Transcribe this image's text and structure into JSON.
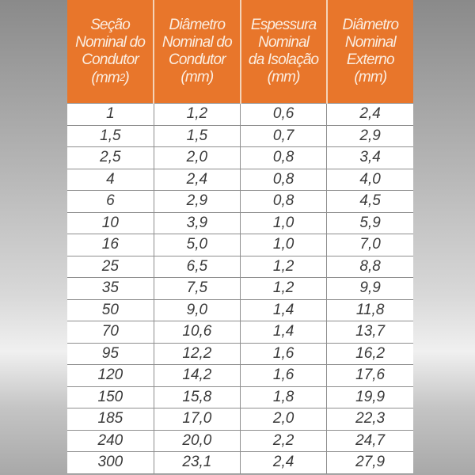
{
  "colors": {
    "header_bg": "#e8762b",
    "header_text": "#fbeee2",
    "cell_text": "#3a3a3a"
  },
  "headers": [
    {
      "lines": [
        "Seção",
        "Nominal do",
        "Condutor",
        "(mm2)"
      ]
    },
    {
      "lines": [
        "Diâmetro",
        "Nominal do",
        "Condutor",
        "(mm)"
      ]
    },
    {
      "lines": [
        "Espessura",
        "Nominal",
        "da Isolação",
        "(mm)"
      ]
    },
    {
      "lines": [
        "Diâmetro",
        "Nominal",
        "Externo",
        "(mm)"
      ]
    }
  ],
  "rows": [
    [
      "1",
      "1,2",
      "0,6",
      "2,4"
    ],
    [
      "1,5",
      "1,5",
      "0,7",
      "2,9"
    ],
    [
      "2,5",
      "2,0",
      "0,8",
      "3,4"
    ],
    [
      "4",
      "2,4",
      "0,8",
      "4,0"
    ],
    [
      "6",
      "2,9",
      "0,8",
      "4,5"
    ],
    [
      "10",
      "3,9",
      "1,0",
      "5,9"
    ],
    [
      "16",
      "5,0",
      "1,0",
      "7,0"
    ],
    [
      "25",
      "6,5",
      "1,2",
      "8,8"
    ],
    [
      "35",
      "7,5",
      "1,2",
      "9,9"
    ],
    [
      "50",
      "9,0",
      "1,4",
      "11,8"
    ],
    [
      "70",
      "10,6",
      "1,4",
      "13,7"
    ],
    [
      "95",
      "12,2",
      "1,6",
      "16,2"
    ],
    [
      "120",
      "14,2",
      "1,6",
      "17,6"
    ],
    [
      "150",
      "15,8",
      "1,8",
      "19,9"
    ],
    [
      "185",
      "17,0",
      "2,0",
      "22,3"
    ],
    [
      "240",
      "20,0",
      "2,2",
      "24,7"
    ],
    [
      "300",
      "23,1",
      "2,4",
      "27,9"
    ]
  ]
}
